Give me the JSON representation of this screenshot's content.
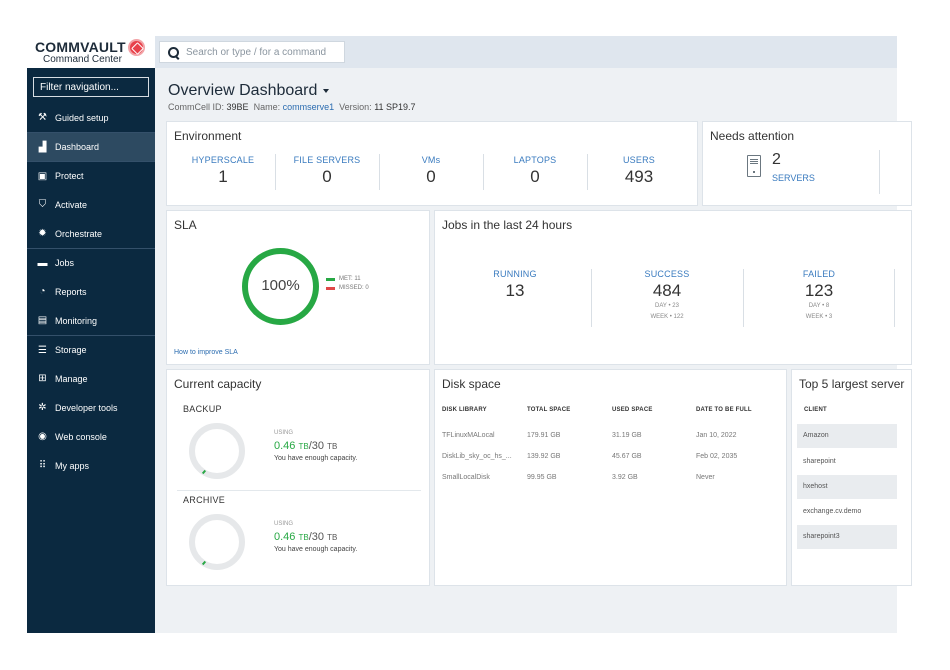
{
  "brand": {
    "name": "COMMVAULT",
    "subtitle": "Command Center"
  },
  "search": {
    "placeholder": "Search or type / for a command"
  },
  "sidebar": {
    "filter_placeholder": "Filter navigation...",
    "items": [
      {
        "label": "Guided setup",
        "icon": "wand-icon"
      },
      {
        "label": "Dashboard",
        "icon": "dashboard-icon"
      },
      {
        "label": "Protect",
        "icon": "protect-icon"
      },
      {
        "label": "Activate",
        "icon": "shield-icon"
      },
      {
        "label": "Orchestrate",
        "icon": "gear-icon"
      },
      {
        "label": "Jobs",
        "icon": "briefcase-icon"
      },
      {
        "label": "Reports",
        "icon": "reports-icon"
      },
      {
        "label": "Monitoring",
        "icon": "monitor-icon"
      },
      {
        "label": "Storage",
        "icon": "database-icon"
      },
      {
        "label": "Manage",
        "icon": "manage-icon"
      },
      {
        "label": "Developer tools",
        "icon": "cog-icon"
      },
      {
        "label": "Web console",
        "icon": "globe-icon"
      },
      {
        "label": "My apps",
        "icon": "apps-grid-icon"
      }
    ]
  },
  "header": {
    "title": "Overview Dashboard",
    "commcell_label": "CommCell ID:",
    "commcell_id": "39BE",
    "name_label": "Name:",
    "name": "commserve1",
    "version_label": "Version:",
    "version": "11 SP19.7"
  },
  "environment": {
    "title": "Environment",
    "kpis": [
      {
        "label": "HYPERSCALE",
        "value": "1"
      },
      {
        "label": "FILE SERVERS",
        "value": "0"
      },
      {
        "label": "VMs",
        "value": "0"
      },
      {
        "label": "LAPTOPS",
        "value": "0"
      },
      {
        "label": "USERS",
        "value": "493"
      }
    ]
  },
  "attention": {
    "title": "Needs attention",
    "count": "2",
    "label": "SERVERS"
  },
  "sla": {
    "title": "SLA",
    "percent": "100%",
    "met_label": "MET: 11",
    "missed_label": "MISSED: 0",
    "improve_link": "How to improve SLA",
    "met_color": "#27a844",
    "missed_color": "#e04848"
  },
  "jobs": {
    "title": "Jobs in the last 24 hours",
    "running": {
      "label": "RUNNING",
      "value": "13"
    },
    "success": {
      "label": "SUCCESS",
      "value": "484",
      "day": "DAY • 23",
      "week": "WEEK • 122"
    },
    "failed": {
      "label": "FAILED",
      "value": "123",
      "day": "DAY • 8",
      "week": "WEEK • 3"
    }
  },
  "capacity": {
    "title": "Current capacity",
    "backup": {
      "label": "BACKUP",
      "using_label": "USING",
      "used": "0.46",
      "used_unit": "TB",
      "total": "/30",
      "total_unit": "TB",
      "note": "You have enough capacity."
    },
    "archive": {
      "label": "ARCHIVE",
      "using_label": "USING",
      "used": "0.46",
      "used_unit": "TB",
      "total": "/30",
      "total_unit": "TB",
      "note": "You have enough capacity."
    }
  },
  "disk": {
    "title": "Disk space",
    "columns": [
      "DISK LIBRARY",
      "TOTAL SPACE",
      "USED SPACE",
      "DATE TO BE FULL"
    ],
    "rows": [
      [
        "TFLinuxMALocal",
        "179.91 GB",
        "31.19 GB",
        "Jan 10, 2022"
      ],
      [
        "DiskLib_sky_oc_hs_...",
        "139.92 GB",
        "45.67 GB",
        "Feb 02, 2035"
      ],
      [
        "SmallLocalDisk",
        "99.95 GB",
        "3.92 GB",
        "Never"
      ]
    ]
  },
  "largest": {
    "title": "Top 5 largest server",
    "column": "CLIENT",
    "clients": [
      "Amazon",
      "sharepoint",
      "hxehost",
      "exchange.cv.demo",
      "sharepoint3"
    ]
  }
}
